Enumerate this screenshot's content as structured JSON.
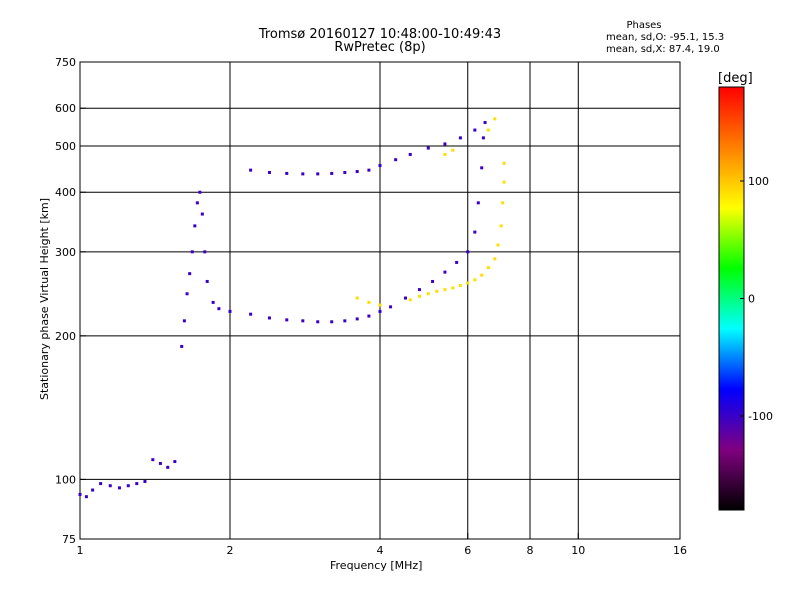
{
  "chart_data": {
    "type": "scatter",
    "title": "Tromsø 20160127 10:48:00-10:49:43",
    "subtitle": "RwPretec (8p)",
    "xlabel": "Frequency [MHz]",
    "ylabel": "Stationary phase Virtual Height [km]",
    "x_scale": "log",
    "y_scale": "log",
    "xlim": [
      1,
      16
    ],
    "ylim": [
      75,
      750
    ],
    "x_ticks": [
      1,
      2,
      4,
      6,
      8,
      10,
      16
    ],
    "x_tick_labels": [
      "1",
      "2",
      "4",
      "6",
      "8",
      "10",
      "16"
    ],
    "x_grid": [
      2,
      4,
      6,
      8,
      10
    ],
    "y_ticks": [
      75,
      100,
      200,
      300,
      400,
      500,
      600,
      750
    ],
    "y_tick_labels": [
      "75",
      "100",
      "200",
      "300",
      "400",
      "500",
      "600",
      "750"
    ],
    "y_grid": [
      100,
      200,
      300,
      400,
      500,
      600
    ],
    "grid": true,
    "phases_panel": {
      "title": "Phases",
      "line1": "mean, sd,O: -95.1, 15.3",
      "line2": "mean, sd,X:  87.4, 19.0"
    },
    "colorbar": {
      "title": "[deg]",
      "range": [
        -180,
        180
      ],
      "ticks": [
        100,
        0,
        -100
      ],
      "tick_labels": [
        "100",
        "0",
        "-100"
      ],
      "colormap": [
        "#000000",
        "#800080",
        "#0000ff",
        "#00ffff",
        "#00ff00",
        "#ffff00",
        "#ff8000",
        "#ff0000"
      ]
    },
    "series": [
      {
        "mode": "O",
        "phase_deg": -100,
        "points": [
          [
            1.0,
            93
          ],
          [
            1.03,
            92
          ],
          [
            1.06,
            95
          ],
          [
            1.1,
            98
          ],
          [
            1.15,
            97
          ],
          [
            1.2,
            96
          ],
          [
            1.25,
            97
          ],
          [
            1.3,
            98
          ],
          [
            1.35,
            99
          ],
          [
            1.4,
            110
          ],
          [
            1.45,
            108
          ],
          [
            1.5,
            106
          ],
          [
            1.55,
            109
          ],
          [
            1.6,
            190
          ],
          [
            1.62,
            215
          ],
          [
            1.64,
            245
          ],
          [
            1.66,
            270
          ],
          [
            1.68,
            300
          ],
          [
            1.7,
            340
          ],
          [
            1.72,
            380
          ],
          [
            1.74,
            400
          ],
          [
            1.76,
            360
          ],
          [
            1.78,
            300
          ],
          [
            1.8,
            260
          ],
          [
            1.85,
            235
          ],
          [
            1.9,
            228
          ],
          [
            2.0,
            225
          ],
          [
            2.2,
            222
          ],
          [
            2.4,
            218
          ],
          [
            2.6,
            216
          ],
          [
            2.8,
            215
          ],
          [
            3.0,
            214
          ],
          [
            3.2,
            214
          ],
          [
            3.4,
            215
          ],
          [
            3.6,
            217
          ],
          [
            3.8,
            220
          ],
          [
            4.0,
            225
          ],
          [
            4.2,
            230
          ],
          [
            4.5,
            240
          ],
          [
            4.8,
            250
          ],
          [
            5.1,
            260
          ],
          [
            5.4,
            272
          ],
          [
            5.7,
            285
          ],
          [
            6.0,
            300
          ],
          [
            6.2,
            330
          ],
          [
            6.3,
            380
          ],
          [
            6.4,
            450
          ],
          [
            6.45,
            520
          ],
          [
            2.2,
            445
          ],
          [
            2.4,
            440
          ],
          [
            2.6,
            438
          ],
          [
            2.8,
            437
          ],
          [
            3.0,
            437
          ],
          [
            3.2,
            438
          ],
          [
            3.4,
            440
          ],
          [
            3.6,
            442
          ],
          [
            3.8,
            445
          ],
          [
            4.0,
            455
          ],
          [
            4.3,
            468
          ],
          [
            4.6,
            480
          ],
          [
            5.0,
            495
          ],
          [
            5.4,
            505
          ],
          [
            5.8,
            520
          ],
          [
            6.2,
            540
          ],
          [
            6.5,
            560
          ]
        ]
      },
      {
        "mode": "X",
        "phase_deg": 90,
        "points": [
          [
            4.6,
            238
          ],
          [
            4.8,
            242
          ],
          [
            5.0,
            245
          ],
          [
            5.2,
            248
          ],
          [
            5.4,
            250
          ],
          [
            5.6,
            252
          ],
          [
            5.8,
            255
          ],
          [
            6.0,
            258
          ],
          [
            6.2,
            262
          ],
          [
            6.4,
            268
          ],
          [
            6.6,
            278
          ],
          [
            6.8,
            290
          ],
          [
            6.9,
            310
          ],
          [
            7.0,
            340
          ],
          [
            7.05,
            380
          ],
          [
            7.1,
            420
          ],
          [
            7.1,
            460
          ],
          [
            3.6,
            240
          ],
          [
            3.8,
            235
          ],
          [
            4.0,
            232
          ],
          [
            6.6,
            540
          ],
          [
            6.8,
            570
          ],
          [
            5.4,
            480
          ],
          [
            5.6,
            490
          ]
        ]
      }
    ]
  }
}
